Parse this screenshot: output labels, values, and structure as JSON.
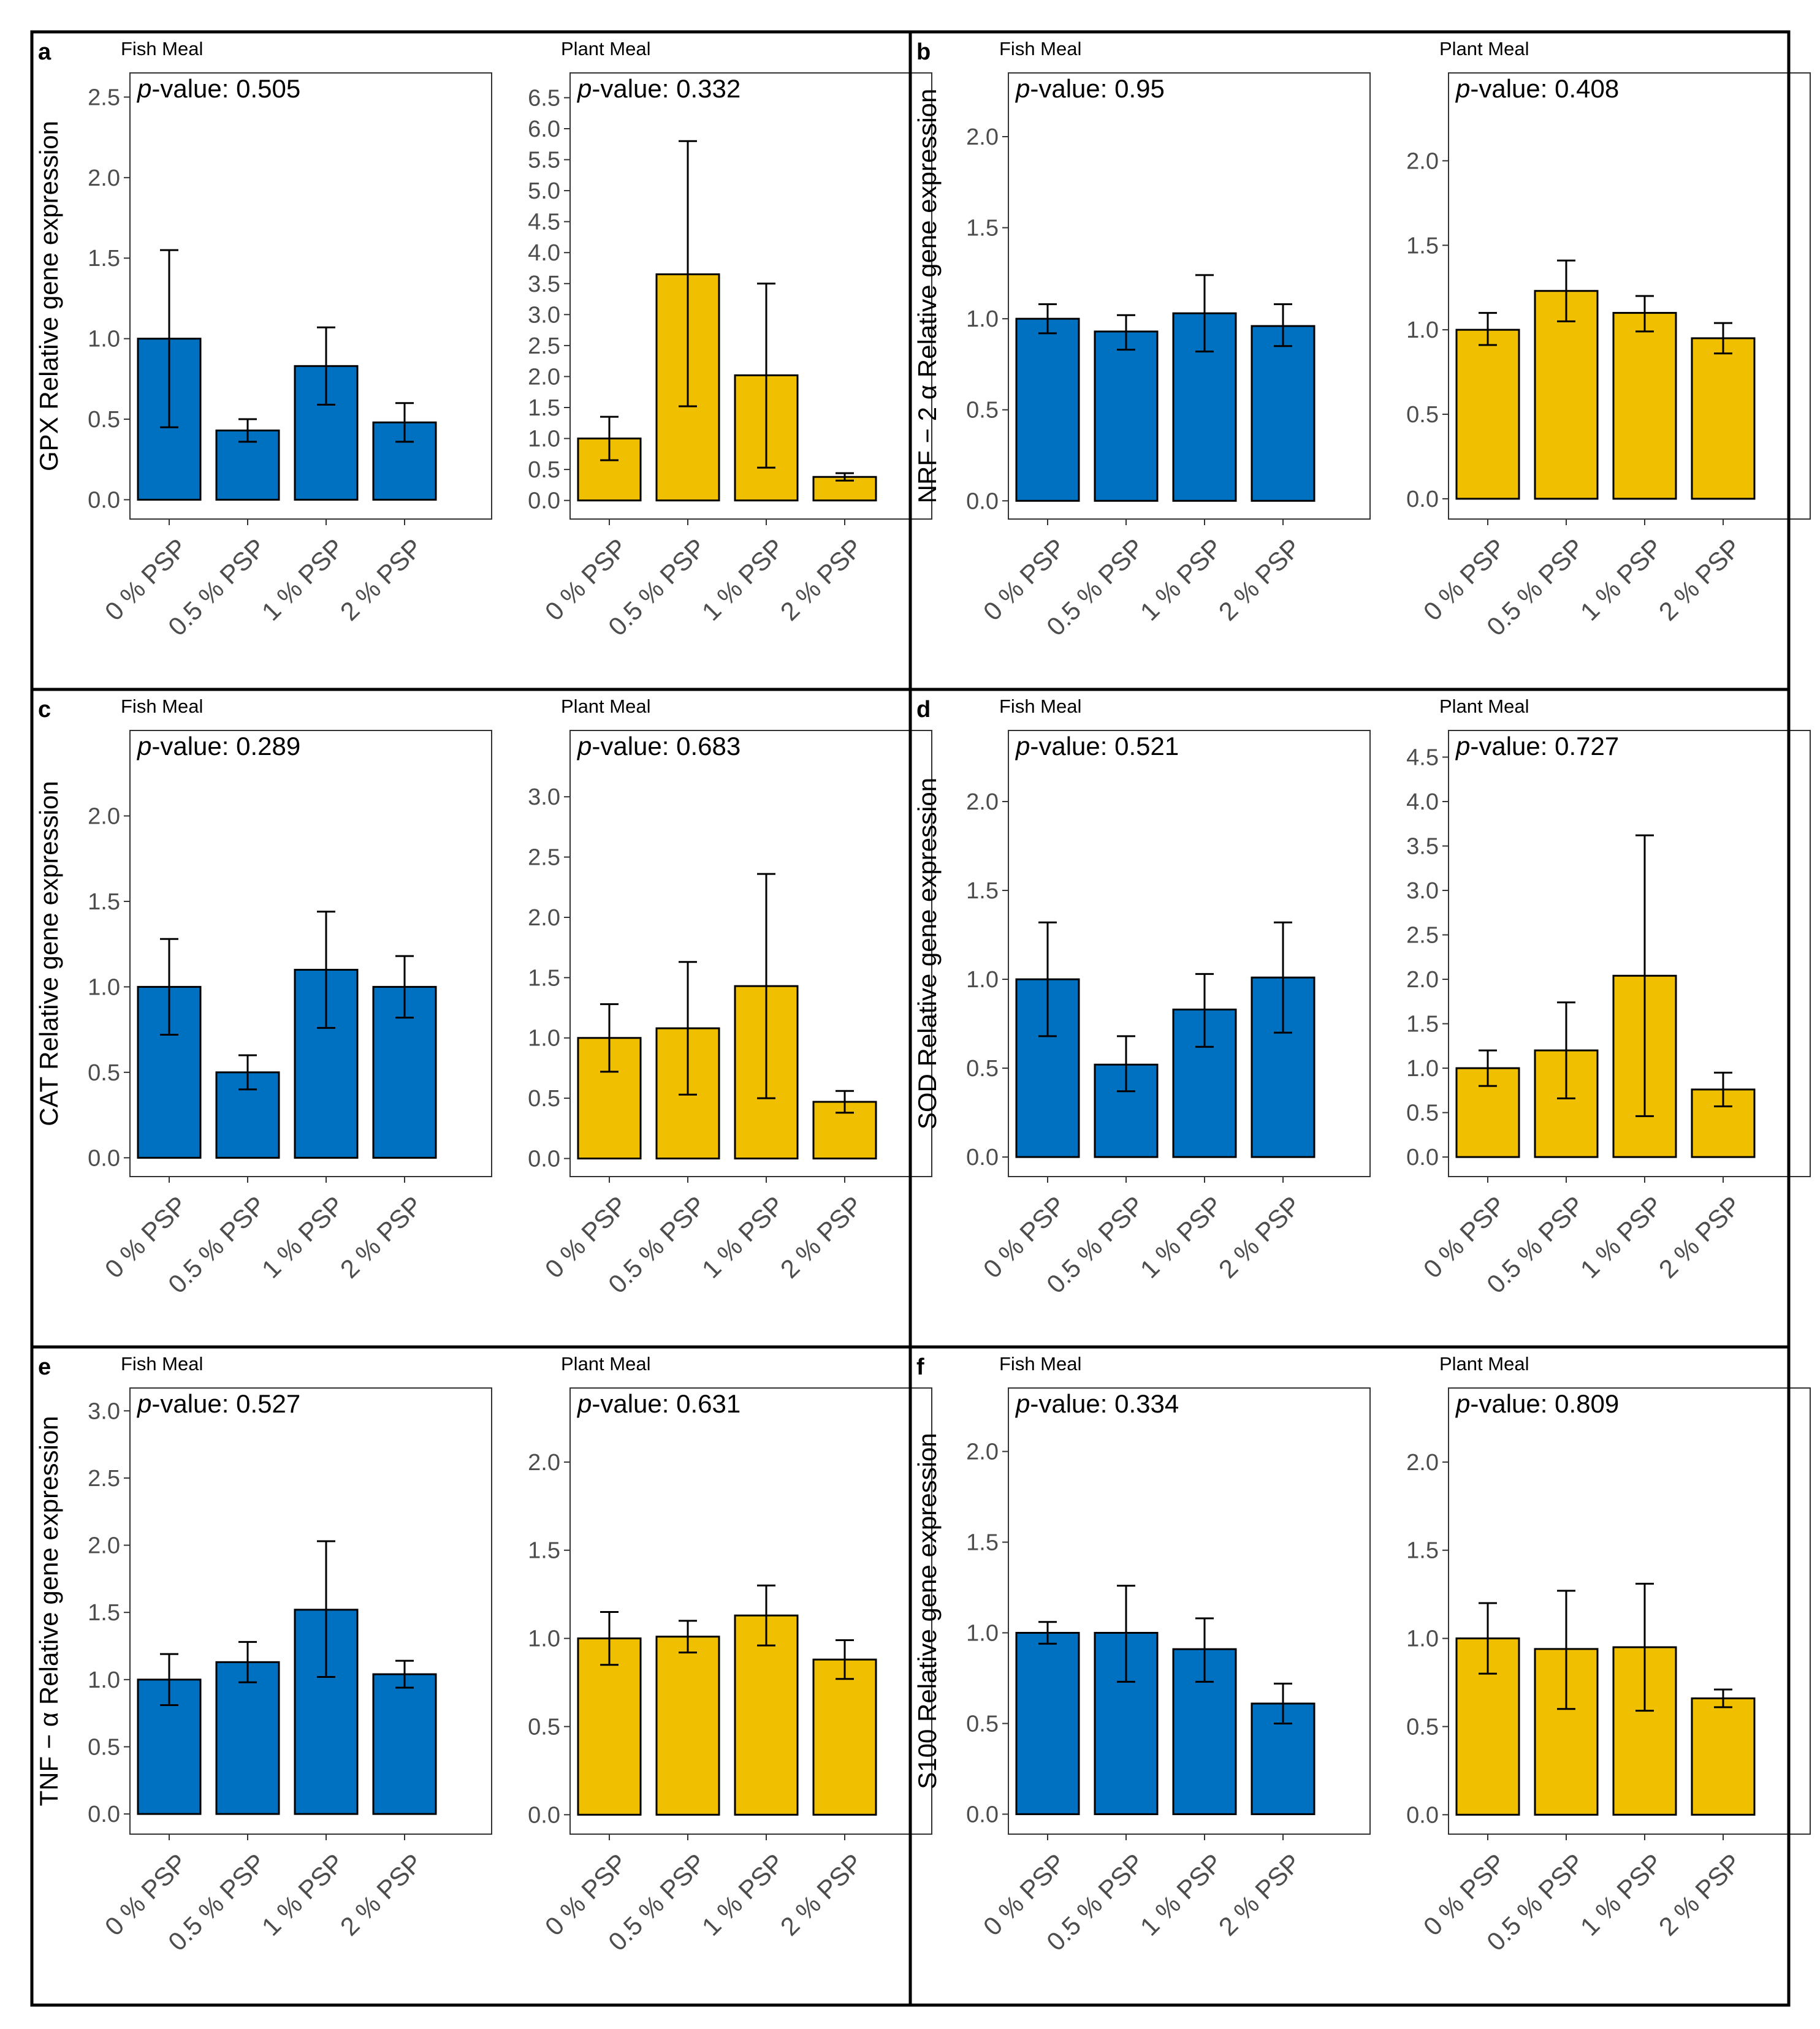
{
  "colors": {
    "fish": "#0070C0",
    "plant": "#F0C000"
  },
  "chart_data": [
    {
      "type": "bar",
      "panel_letter": "a",
      "ylabel": "GPX Relative gene expression",
      "subplots": [
        {
          "title": "Fish Meal",
          "pvalue_label": "-value: 0.505",
          "categories": [
            "0 % PSP",
            "0.5 % PSP",
            "1 % PSP",
            "2 % PSP"
          ],
          "values": [
            1.0,
            0.43,
            0.83,
            0.48
          ],
          "err_low": [
            0.45,
            0.36,
            0.59,
            0.36
          ],
          "err_high": [
            1.55,
            0.5,
            1.07,
            0.6
          ],
          "ylim": [
            -0.12,
            2.65
          ],
          "yticks": [
            "0.0",
            "0.5",
            "1.0",
            "1.5",
            "2.0",
            "2.5"
          ],
          "tick_vals": [
            0,
            0.5,
            1,
            1.5,
            2,
            2.5
          ]
        },
        {
          "title": "Plant Meal",
          "pvalue_label": "-value: 0.332",
          "categories": [
            "0 % PSP",
            "0.5 % PSP",
            "1 % PSP",
            "2 % PSP"
          ],
          "values": [
            1.0,
            3.65,
            2.02,
            0.38
          ],
          "err_low": [
            0.65,
            1.52,
            0.53,
            0.32
          ],
          "err_high": [
            1.35,
            5.8,
            3.5,
            0.44
          ],
          "ylim": [
            -0.3,
            6.9
          ],
          "yticks": [
            "0.0",
            "0.5",
            "1.0",
            "1.5",
            "2.0",
            "2.5",
            "3.0",
            "3.5",
            "4.0",
            "4.5",
            "5.0",
            "5.5",
            "6.0",
            "6.5"
          ],
          "tick_vals": [
            0,
            0.5,
            1,
            1.5,
            2,
            2.5,
            3,
            3.5,
            4,
            4.5,
            5,
            5.5,
            6,
            6.5
          ]
        }
      ]
    },
    {
      "type": "bar",
      "panel_letter": "b",
      "ylabel": "NRF − 2 α Relative gene expression",
      "subplots": [
        {
          "title": "Fish Meal",
          "pvalue_label": "-value: 0.95",
          "categories": [
            "0 % PSP",
            "0.5 % PSP",
            "1 % PSP",
            "2 % PSP"
          ],
          "values": [
            1.0,
            0.93,
            1.03,
            0.96
          ],
          "err_low": [
            0.92,
            0.83,
            0.82,
            0.85
          ],
          "err_high": [
            1.08,
            1.02,
            1.24,
            1.08
          ],
          "ylim": [
            -0.1,
            2.35
          ],
          "yticks": [
            "0.0",
            "0.5",
            "1.0",
            "1.5",
            "2.0"
          ],
          "tick_vals": [
            0,
            0.5,
            1,
            1.5,
            2
          ]
        },
        {
          "title": "Plant Meal",
          "pvalue_label": "-value: 0.408",
          "categories": [
            "0 % PSP",
            "0.5 % PSP",
            "1 % PSP",
            "2 % PSP"
          ],
          "values": [
            1.0,
            1.23,
            1.1,
            0.95
          ],
          "err_low": [
            0.91,
            1.05,
            0.99,
            0.86
          ],
          "err_high": [
            1.1,
            1.41,
            1.2,
            1.04
          ],
          "ylim": [
            -0.12,
            2.52
          ],
          "yticks": [
            "0.0",
            "0.5",
            "1.0",
            "1.5",
            "2.0"
          ],
          "tick_vals": [
            0,
            0.5,
            1,
            1.5,
            2
          ]
        }
      ]
    },
    {
      "type": "bar",
      "panel_letter": "c",
      "ylabel": "CAT Relative gene expression",
      "subplots": [
        {
          "title": "Fish Meal",
          "pvalue_label": "-value: 0.289",
          "categories": [
            "0 % PSP",
            "0.5 % PSP",
            "1 % PSP",
            "2 % PSP"
          ],
          "values": [
            1.0,
            0.5,
            1.1,
            1.0
          ],
          "err_low": [
            0.72,
            0.4,
            0.76,
            0.82
          ],
          "err_high": [
            1.28,
            0.6,
            1.44,
            1.18
          ],
          "ylim": [
            -0.11,
            2.5
          ],
          "yticks": [
            "0.0",
            "0.5",
            "1.0",
            "1.5",
            "2.0"
          ],
          "tick_vals": [
            0,
            0.5,
            1,
            1.5,
            2
          ]
        },
        {
          "title": "Plant Meal",
          "pvalue_label": "-value: 0.683",
          "categories": [
            "0 % PSP",
            "0.5 % PSP",
            "1 % PSP",
            "2 % PSP"
          ],
          "values": [
            1.0,
            1.08,
            1.43,
            0.47
          ],
          "err_low": [
            0.72,
            0.53,
            0.5,
            0.38
          ],
          "err_high": [
            1.28,
            1.63,
            2.36,
            0.56
          ],
          "ylim": [
            -0.15,
            3.55
          ],
          "yticks": [
            "0.0",
            "0.5",
            "1.0",
            "1.5",
            "2.0",
            "2.5",
            "3.0"
          ],
          "tick_vals": [
            0,
            0.5,
            1,
            1.5,
            2,
            2.5,
            3
          ]
        }
      ]
    },
    {
      "type": "bar",
      "panel_letter": "d",
      "ylabel": "SOD Relative gene expression",
      "subplots": [
        {
          "title": "Fish Meal",
          "pvalue_label": "-value: 0.521",
          "categories": [
            "0 % PSP",
            "0.5 % PSP",
            "1 % PSP",
            "2 % PSP"
          ],
          "values": [
            1.0,
            0.52,
            0.83,
            1.01
          ],
          "err_low": [
            0.68,
            0.37,
            0.62,
            0.7
          ],
          "err_high": [
            1.32,
            0.68,
            1.03,
            1.32
          ],
          "ylim": [
            -0.11,
            2.4
          ],
          "yticks": [
            "0.0",
            "0.5",
            "1.0",
            "1.5",
            "2.0"
          ],
          "tick_vals": [
            0,
            0.5,
            1,
            1.5,
            2
          ]
        },
        {
          "title": "Plant Meal",
          "pvalue_label": "-value: 0.727",
          "categories": [
            "0 % PSP",
            "0.5 % PSP",
            "1 % PSP",
            "2 % PSP"
          ],
          "values": [
            1.0,
            1.2,
            2.04,
            0.76
          ],
          "err_low": [
            0.8,
            0.66,
            0.46,
            0.57
          ],
          "err_high": [
            1.2,
            1.74,
            3.62,
            0.95
          ],
          "ylim": [
            -0.22,
            4.8
          ],
          "yticks": [
            "0.0",
            "0.5",
            "1.0",
            "1.5",
            "2.0",
            "2.5",
            "3.0",
            "3.5",
            "4.0",
            "4.5"
          ],
          "tick_vals": [
            0,
            0.5,
            1,
            1.5,
            2,
            2.5,
            3,
            3.5,
            4,
            4.5
          ]
        }
      ]
    },
    {
      "type": "bar",
      "panel_letter": "e",
      "ylabel": "TNF − α Relative gene expression",
      "subplots": [
        {
          "title": "Fish Meal",
          "pvalue_label": "-value: 0.527",
          "categories": [
            "0 % PSP",
            "0.5 % PSP",
            "1 % PSP",
            "2 % PSP"
          ],
          "values": [
            1.0,
            1.13,
            1.52,
            1.04
          ],
          "err_low": [
            0.81,
            0.98,
            1.02,
            0.94
          ],
          "err_high": [
            1.19,
            1.28,
            2.03,
            1.14
          ],
          "ylim": [
            -0.15,
            3.17
          ],
          "yticks": [
            "0.0",
            "0.5",
            "1.0",
            "1.5",
            "2.0",
            "2.5",
            "3.0"
          ],
          "tick_vals": [
            0,
            0.5,
            1,
            1.5,
            2,
            2.5,
            3
          ]
        },
        {
          "title": "Plant Meal",
          "pvalue_label": "-value: 0.631",
          "categories": [
            "0 % PSP",
            "0.5 % PSP",
            "1 % PSP",
            "2 % PSP"
          ],
          "values": [
            1.0,
            1.01,
            1.13,
            0.88
          ],
          "err_low": [
            0.85,
            0.92,
            0.96,
            0.77
          ],
          "err_high": [
            1.15,
            1.1,
            1.3,
            0.99
          ],
          "ylim": [
            -0.11,
            2.42
          ],
          "yticks": [
            "0.0",
            "0.5",
            "1.0",
            "1.5",
            "2.0"
          ],
          "tick_vals": [
            0,
            0.5,
            1,
            1.5,
            2
          ]
        }
      ]
    },
    {
      "type": "bar",
      "panel_letter": "f",
      "ylabel": "S100 Relative gene expression",
      "subplots": [
        {
          "title": "Fish Meal",
          "pvalue_label": "-value: 0.334",
          "categories": [
            "0 % PSP",
            "0.5 % PSP",
            "1 % PSP",
            "2 % PSP"
          ],
          "values": [
            1.0,
            1.0,
            0.91,
            0.61
          ],
          "err_low": [
            0.94,
            0.73,
            0.73,
            0.5
          ],
          "err_high": [
            1.06,
            1.26,
            1.08,
            0.72
          ],
          "ylim": [
            -0.11,
            2.35
          ],
          "yticks": [
            "0.0",
            "0.5",
            "1.0",
            "1.5",
            "2.0"
          ],
          "tick_vals": [
            0,
            0.5,
            1,
            1.5,
            2
          ]
        },
        {
          "title": "Plant Meal",
          "pvalue_label": "-value: 0.809",
          "categories": [
            "0 % PSP",
            "0.5 % PSP",
            "1 % PSP",
            "2 % PSP"
          ],
          "values": [
            1.0,
            0.94,
            0.95,
            0.66
          ],
          "err_low": [
            0.8,
            0.6,
            0.59,
            0.61
          ],
          "err_high": [
            1.2,
            1.27,
            1.31,
            0.71
          ],
          "ylim": [
            -0.11,
            2.42
          ],
          "yticks": [
            "0.0",
            "0.5",
            "1.0",
            "1.5",
            "2.0"
          ],
          "tick_vals": [
            0,
            0.5,
            1,
            1.5,
            2
          ]
        }
      ]
    }
  ]
}
